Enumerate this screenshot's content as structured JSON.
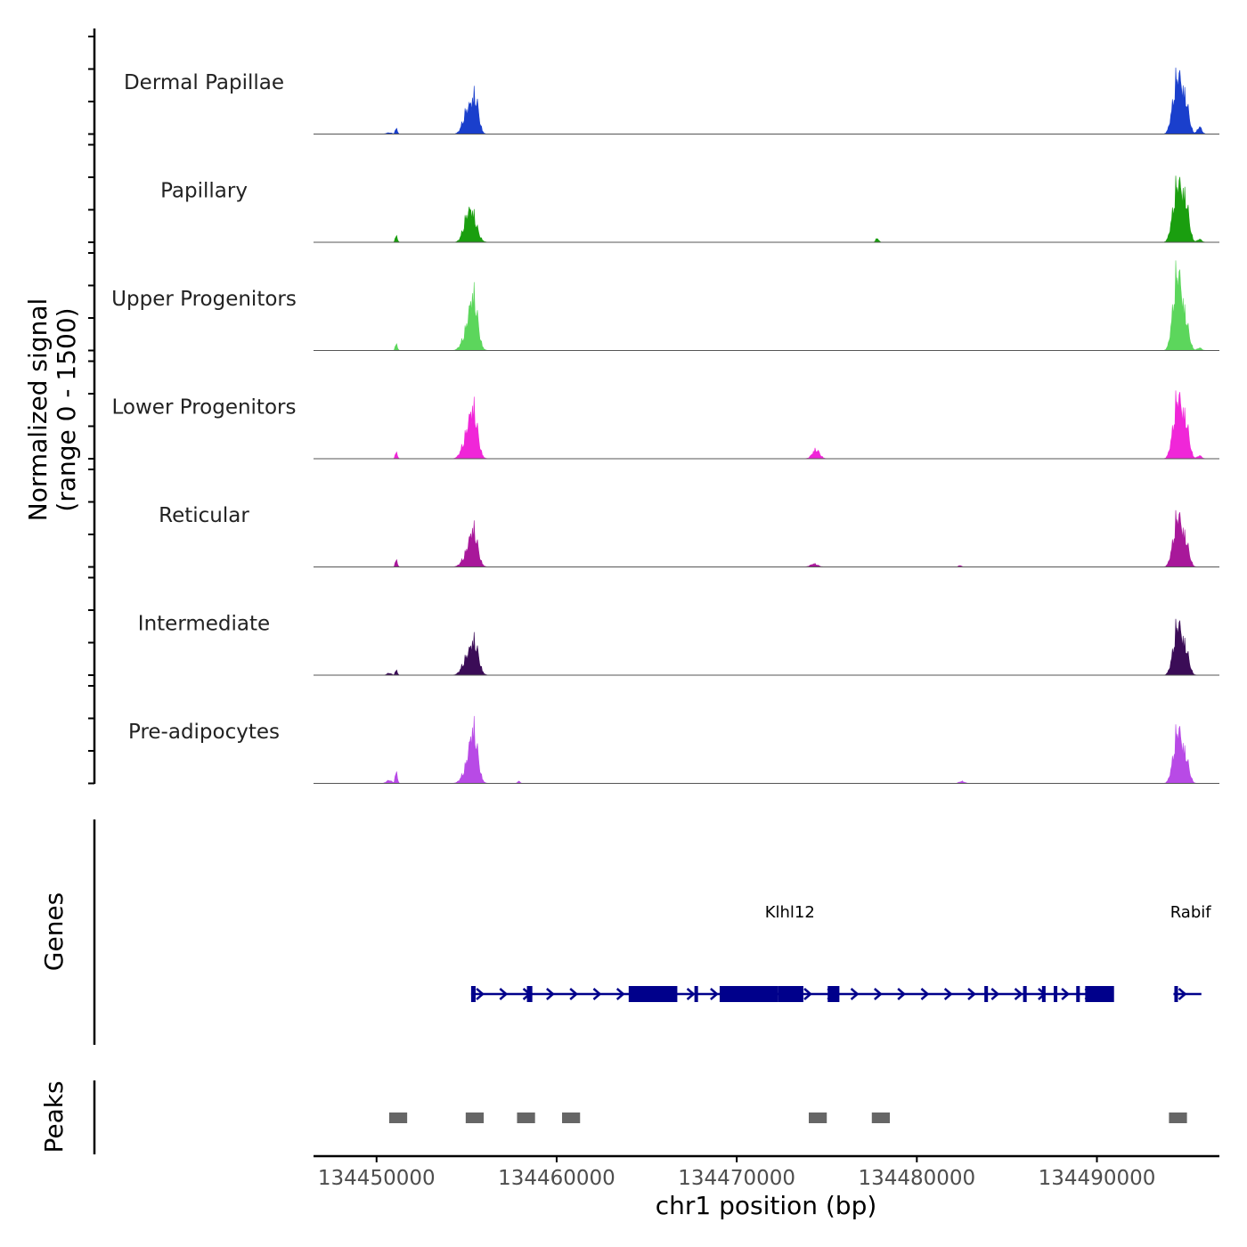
{
  "chart_data": {
    "type": "area",
    "title": "",
    "ylabel_line1": "Normalized signal",
    "ylabel_line2": "(range 0 - 1500)",
    "y_range": [
      0,
      1500
    ],
    "genes_label": "Genes",
    "peaks_label": "Peaks",
    "xlabel": "chr1 position (bp)",
    "xlim": [
      134446500,
      134496800
    ],
    "x_ticks": [
      134450000,
      134460000,
      134470000,
      134480000,
      134490000
    ],
    "x_tick_labels": [
      "134450000",
      "134460000",
      "134470000",
      "134480000",
      "134490000"
    ],
    "tracks": [
      {
        "name": "Dermal Papillae",
        "color": "#1a3fcc",
        "peaks": [
          [
            134451100,
            110,
            60
          ],
          [
            134455150,
            370,
            220
          ],
          [
            134455500,
            640,
            180
          ],
          [
            134454900,
            200,
            200
          ],
          [
            134494500,
            1150,
            220
          ],
          [
            134494150,
            150,
            150
          ],
          [
            134494950,
            550,
            180
          ],
          [
            134495700,
            140,
            120
          ],
          [
            134450700,
            25,
            150
          ]
        ]
      },
      {
        "name": "Papillary",
        "color": "#1a9e0f",
        "peaks": [
          [
            134451100,
            130,
            60
          ],
          [
            134455300,
            560,
            260
          ],
          [
            134454950,
            250,
            200
          ],
          [
            134477800,
            80,
            80
          ],
          [
            134494500,
            1150,
            220
          ],
          [
            134494150,
            150,
            150
          ],
          [
            134494950,
            700,
            180
          ],
          [
            134495700,
            60,
            120
          ]
        ]
      },
      {
        "name": "Upper Progenitors",
        "color": "#5cd65c",
        "peaks": [
          [
            134451100,
            130,
            60
          ],
          [
            134455400,
            1000,
            220
          ],
          [
            134455000,
            330,
            250
          ],
          [
            134494500,
            1500,
            210
          ],
          [
            134494200,
            250,
            160
          ],
          [
            134494950,
            500,
            180
          ],
          [
            134495700,
            50,
            120
          ]
        ]
      },
      {
        "name": "Lower Progenitors",
        "color": "#f026d8",
        "peaks": [
          [
            134451100,
            130,
            60
          ],
          [
            134455400,
            880,
            220
          ],
          [
            134455000,
            400,
            250
          ],
          [
            134474400,
            180,
            200
          ],
          [
            134494500,
            1200,
            210
          ],
          [
            134494150,
            150,
            150
          ],
          [
            134494950,
            650,
            180
          ],
          [
            134495700,
            60,
            120
          ]
        ]
      },
      {
        "name": "Reticular",
        "color": "#a8189a",
        "peaks": [
          [
            134451100,
            140,
            60
          ],
          [
            134455400,
            680,
            220
          ],
          [
            134455000,
            220,
            250
          ],
          [
            134474300,
            60,
            200
          ],
          [
            134482400,
            30,
            80
          ],
          [
            134494500,
            1000,
            210
          ],
          [
            134494150,
            120,
            150
          ],
          [
            134494950,
            450,
            180
          ]
        ]
      },
      {
        "name": "Intermediate",
        "color": "#3b0c57",
        "peaks": [
          [
            134451100,
            100,
            60
          ],
          [
            134455450,
            610,
            220
          ],
          [
            134455000,
            310,
            250
          ],
          [
            134450700,
            40,
            120
          ],
          [
            134494500,
            1000,
            210
          ],
          [
            134494150,
            100,
            150
          ],
          [
            134494950,
            450,
            180
          ]
        ]
      },
      {
        "name": "Pre-adipocytes",
        "color": "#b84ae6",
        "peaks": [
          [
            134451100,
            230,
            60
          ],
          [
            134455400,
            1000,
            220
          ],
          [
            134455000,
            260,
            250
          ],
          [
            134450700,
            60,
            150
          ],
          [
            134457900,
            40,
            80
          ],
          [
            134482500,
            40,
            150
          ],
          [
            134494500,
            1050,
            210
          ],
          [
            134494150,
            100,
            150
          ],
          [
            134494950,
            450,
            180
          ]
        ]
      }
    ],
    "genes": {
      "color": "#00008b",
      "transcripts": [
        {
          "name": "Klhl12",
          "label_x": 134472950,
          "start": 134455250,
          "end": 134490900,
          "strand": "+",
          "exons": [
            [
              134455250,
              134455500
            ],
            [
              134458350,
              134458650
            ],
            [
              134464000,
              134466700
            ],
            [
              134467650,
              134467850
            ],
            [
              134469050,
              134472300
            ],
            [
              134472300,
              134473700
            ],
            [
              134475050,
              134475700
            ],
            [
              134483750,
              134483950
            ],
            [
              134485900,
              134486100
            ],
            [
              134486950,
              134487150
            ],
            [
              134487600,
              134487800
            ],
            [
              134488850,
              134489050
            ],
            [
              134489350,
              134490950
            ]
          ]
        },
        {
          "name": "Rabif",
          "label_x": 134495200,
          "start": 134494250,
          "end": 134495800,
          "strand": "+",
          "exons": [
            [
              134494300,
              134494500
            ]
          ]
        }
      ]
    },
    "peaks": [
      [
        134450700,
        134451700
      ],
      [
        134454950,
        134455950
      ],
      [
        134457800,
        134458800
      ],
      [
        134460300,
        134461300
      ],
      [
        134474000,
        134475000
      ],
      [
        134477500,
        134478500
      ],
      [
        134494000,
        134495000
      ]
    ]
  }
}
